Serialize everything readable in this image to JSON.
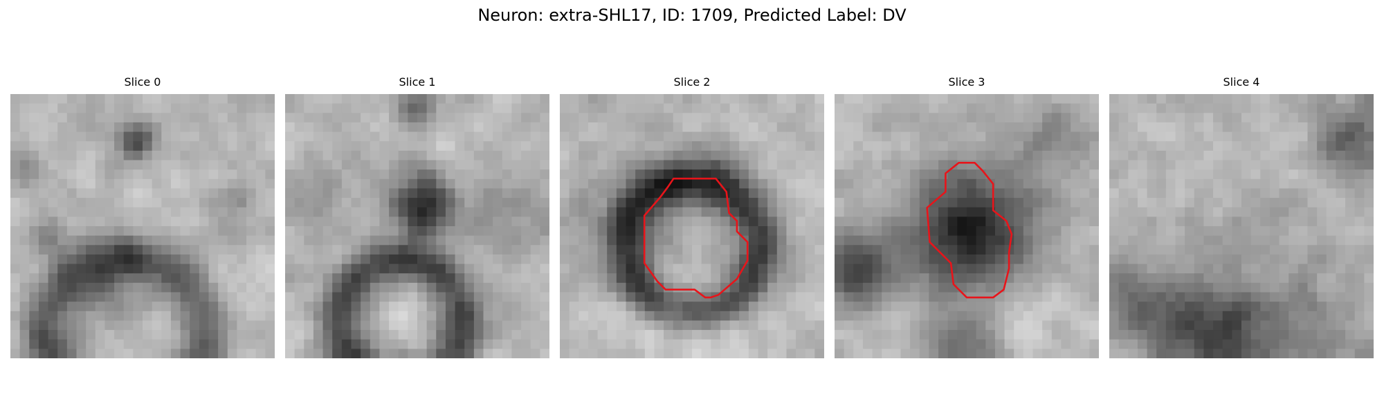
{
  "figure": {
    "title": "Neuron: extra-SHL17, ID: 1709, Predicted Label: DV"
  },
  "panels": [
    {
      "title": "Slice 0",
      "seed": 11,
      "blobs": [
        [
          0.48,
          0.17,
          0.05,
          -0.45
        ],
        [
          0.37,
          0.7,
          0.1,
          -0.25
        ],
        [
          0.06,
          0.3,
          0.05,
          -0.2
        ],
        [
          0.15,
          0.55,
          0.06,
          -0.2
        ],
        [
          0.88,
          0.4,
          0.05,
          -0.15
        ],
        [
          0.2,
          0.95,
          0.06,
          -0.15
        ]
      ],
      "rings": [
        [
          0.43,
          0.92,
          0.3,
          0.06,
          -0.35
        ]
      ],
      "has_contour": false
    },
    {
      "title": "Slice 1",
      "seed": 23,
      "blobs": [
        [
          0.52,
          0.42,
          0.08,
          -0.6
        ],
        [
          0.5,
          0.05,
          0.05,
          -0.3
        ],
        [
          0.1,
          0.4,
          0.08,
          -0.15
        ],
        [
          0.85,
          0.45,
          0.1,
          -0.15
        ],
        [
          0.44,
          0.85,
          0.07,
          0.05
        ]
      ],
      "rings": [
        [
          0.44,
          0.86,
          0.23,
          0.06,
          -0.45
        ]
      ],
      "has_contour": false
    },
    {
      "title": "Slice 2",
      "seed": 37,
      "blobs": [
        [
          0.4,
          0.42,
          0.16,
          -0.15
        ],
        [
          0.05,
          0.5,
          0.08,
          -0.1
        ],
        [
          0.5,
          0.85,
          0.16,
          0.15
        ]
      ],
      "rings": [
        [
          0.5,
          0.57,
          0.25,
          0.06,
          -0.5
        ]
      ],
      "contour": [
        [
          0.43,
          0.32
        ],
        [
          0.59,
          0.32
        ],
        [
          0.63,
          0.37
        ],
        [
          0.64,
          0.45
        ],
        [
          0.67,
          0.48
        ],
        [
          0.67,
          0.52
        ],
        [
          0.71,
          0.56
        ],
        [
          0.71,
          0.63
        ],
        [
          0.67,
          0.7
        ],
        [
          0.6,
          0.76
        ],
        [
          0.57,
          0.77
        ],
        [
          0.55,
          0.77
        ],
        [
          0.51,
          0.74
        ],
        [
          0.4,
          0.74
        ],
        [
          0.37,
          0.71
        ],
        [
          0.32,
          0.64
        ],
        [
          0.32,
          0.46
        ],
        [
          0.38,
          0.39
        ],
        [
          0.41,
          0.35
        ]
      ],
      "has_contour": true
    },
    {
      "title": "Slice 3",
      "seed": 51,
      "blobs": [
        [
          0.52,
          0.53,
          0.17,
          -0.6
        ],
        [
          0.08,
          0.66,
          0.09,
          -0.5
        ],
        [
          0.83,
          0.16,
          0.1,
          -0.2
        ],
        [
          0.5,
          0.97,
          0.1,
          -0.35
        ],
        [
          0.65,
          0.8,
          0.12,
          0.15
        ]
      ],
      "rings": [],
      "contour": [
        [
          0.47,
          0.26
        ],
        [
          0.53,
          0.26
        ],
        [
          0.56,
          0.29
        ],
        [
          0.6,
          0.34
        ],
        [
          0.6,
          0.44
        ],
        [
          0.65,
          0.48
        ],
        [
          0.67,
          0.53
        ],
        [
          0.66,
          0.6
        ],
        [
          0.66,
          0.66
        ],
        [
          0.64,
          0.74
        ],
        [
          0.6,
          0.77
        ],
        [
          0.5,
          0.77
        ],
        [
          0.45,
          0.72
        ],
        [
          0.44,
          0.64
        ],
        [
          0.36,
          0.56
        ],
        [
          0.35,
          0.43
        ],
        [
          0.42,
          0.37
        ],
        [
          0.42,
          0.3
        ]
      ],
      "has_contour": true
    },
    {
      "title": "Slice 4",
      "seed": 67,
      "blobs": [
        [
          0.92,
          0.17,
          0.1,
          -0.35
        ],
        [
          0.38,
          0.92,
          0.15,
          -0.45
        ],
        [
          0.1,
          0.8,
          0.12,
          -0.25
        ],
        [
          0.75,
          0.92,
          0.18,
          -0.2
        ],
        [
          0.5,
          0.55,
          0.15,
          -0.05
        ]
      ],
      "rings": [],
      "has_contour": false
    }
  ],
  "colors": {
    "contour": "#e8141a",
    "gray_dark": "#101010",
    "gray_light": "#f6f6f6"
  }
}
